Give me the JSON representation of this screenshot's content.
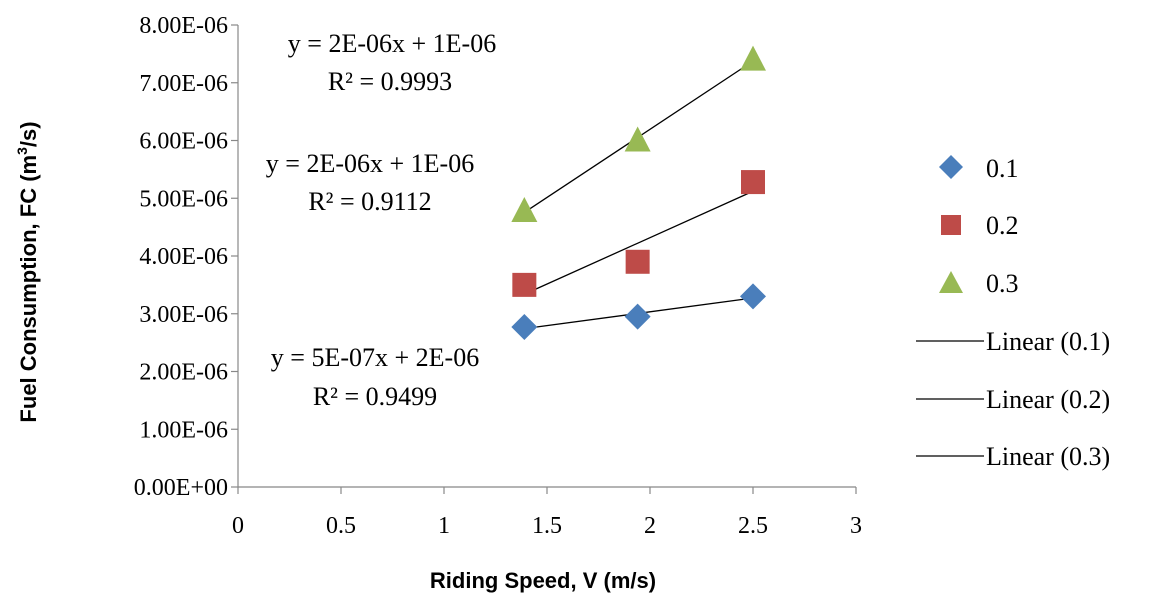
{
  "chart_data": {
    "type": "scatter",
    "xlabel": "Riding Speed, V (m/s)",
    "ylabel": {
      "prefix": "Fuel Consumption, FC (m",
      "sup": "3",
      "suffix": "/s)"
    },
    "xlim": [
      0,
      3
    ],
    "ylim": [
      0,
      8e-06
    ],
    "x_ticks": [
      "0",
      "0.5",
      "1",
      "1.5",
      "2",
      "2.5",
      "3"
    ],
    "y_ticks": [
      "0.00E+00",
      "1.00E-06",
      "2.00E-06",
      "3.00E-06",
      "4.00E-06",
      "5.00E-06",
      "6.00E-06",
      "7.00E-06",
      "8.00E-06"
    ],
    "grid": false,
    "legend_position": "right",
    "series": [
      {
        "name": "0.1",
        "marker": "diamond",
        "color": "#4A7EBB",
        "x": [
          1.39,
          1.94,
          2.5
        ],
        "y": [
          2.77e-06,
          2.95e-06,
          3.3e-06
        ],
        "trendline_label": "Linear (0.1)",
        "equation": "y = 5E-07x + 2E-06",
        "r2": "R² = 0.9499"
      },
      {
        "name": "0.2",
        "marker": "square",
        "color": "#BE4B48",
        "x": [
          1.39,
          1.94,
          2.5
        ],
        "y": [
          3.5e-06,
          3.9e-06,
          5.28e-06
        ],
        "trendline_label": "Linear (0.2)",
        "equation": "y = 2E-06x + 1E-06",
        "r2": "R² = 0.9112"
      },
      {
        "name": "0.3",
        "marker": "triangle",
        "color": "#98B954",
        "x": [
          1.39,
          1.94,
          2.5
        ],
        "y": [
          4.78e-06,
          6e-06,
          7.4e-06
        ],
        "trendline_label": "Linear (0.3)",
        "equation": "y = 2E-06x + 1E-06",
        "r2": "R² = 0.9993"
      }
    ]
  }
}
